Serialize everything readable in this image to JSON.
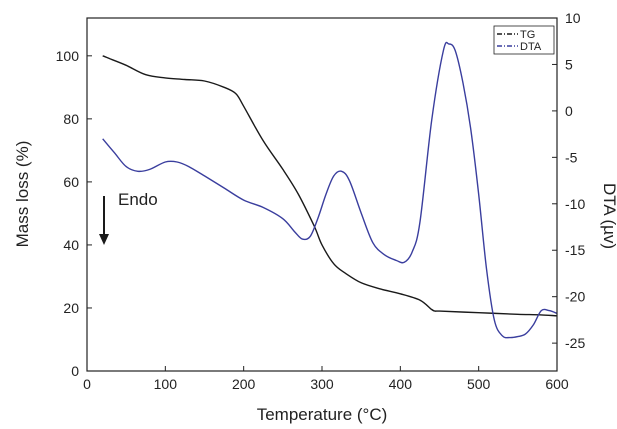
{
  "chart_data": {
    "type": "line",
    "xlabel": "Temperature (°C)",
    "ylabel_left": "Mass loss (%)",
    "ylabel_right": "DTA (µv)",
    "xlim": [
      0,
      600
    ],
    "ylim_left": [
      0,
      112
    ],
    "ylim_right": [
      -28,
      10
    ],
    "x_ticks": [
      0,
      100,
      200,
      300,
      400,
      500,
      600
    ],
    "y_left_ticks": [
      0,
      20,
      40,
      60,
      80,
      100
    ],
    "y_right_ticks": [
      10,
      5,
      0,
      -5,
      -10,
      -15,
      -20,
      -25
    ],
    "grid": false,
    "legend_position": "top-right",
    "series": [
      {
        "name": "TG",
        "axis": "left",
        "color": "#1a1a1a",
        "x": [
          20,
          30,
          50,
          75,
          100,
          125,
          150,
          175,
          190,
          200,
          225,
          250,
          270,
          290,
          300,
          315,
          330,
          350,
          375,
          400,
          425,
          440,
          445,
          450,
          500,
          550,
          580,
          600
        ],
        "y": [
          100,
          99,
          97,
          94,
          93,
          92.5,
          92,
          90,
          88,
          84,
          73,
          64,
          56,
          46,
          40,
          34,
          31,
          28,
          26,
          24.5,
          22.5,
          19.5,
          19,
          19,
          18.5,
          18,
          17.8,
          17.5
        ]
      },
      {
        "name": "DTA",
        "axis": "right",
        "color": "#3a3e9e",
        "x": [
          20,
          35,
          50,
          65,
          80,
          100,
          115,
          130,
          150,
          175,
          200,
          225,
          250,
          265,
          275,
          285,
          295,
          305,
          315,
          325,
          335,
          350,
          365,
          380,
          395,
          405,
          415,
          425,
          440,
          455,
          462,
          470,
          480,
          490,
          500,
          510,
          520,
          530,
          540,
          550,
          560,
          570,
          580,
          590,
          600
        ],
        "y": [
          -3,
          -4.5,
          -6,
          -6.5,
          -6.3,
          -5.5,
          -5.5,
          -6,
          -7,
          -8.3,
          -9.6,
          -10.4,
          -11.6,
          -13,
          -13.8,
          -13.5,
          -11.5,
          -9,
          -7,
          -6.5,
          -7.5,
          -11,
          -14.2,
          -15.5,
          -16.1,
          -16.3,
          -15.2,
          -12,
          -1,
          6.5,
          7.2,
          6.5,
          3,
          -2,
          -9,
          -17,
          -22.5,
          -24.2,
          -24.4,
          -24.3,
          -24,
          -23,
          -21.5,
          -21.5,
          -21.8
        ]
      }
    ],
    "annotations": [
      {
        "text": "Endo",
        "arrow": "down"
      }
    ]
  }
}
